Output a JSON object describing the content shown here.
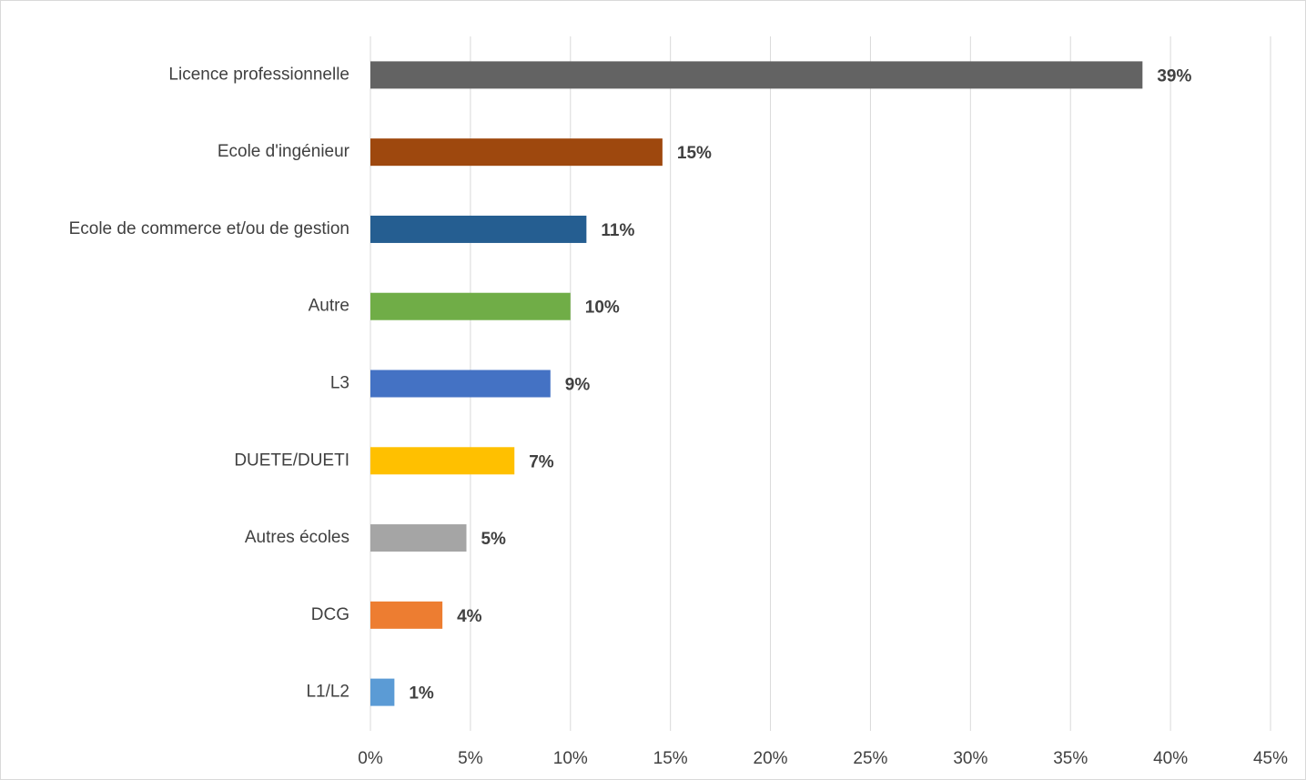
{
  "chart_data": {
    "type": "bar",
    "orientation": "horizontal",
    "categories": [
      "Licence professionnelle",
      "Ecole d'ingénieur",
      "Ecole de commerce et/ou de gestion",
      "Autre",
      "L3",
      "DUETE/DUETI",
      "Autres écoles",
      "DCG",
      "L1/L2"
    ],
    "values": [
      38.6,
      14.6,
      10.8,
      10.0,
      9.0,
      7.2,
      4.8,
      3.6,
      1.2
    ],
    "value_labels": [
      "39%",
      "15%",
      "11%",
      "10%",
      "9%",
      "7%",
      "5%",
      "4%",
      "1%"
    ],
    "colors": [
      "#636363",
      "#9e480e",
      "#255e91",
      "#70ad47",
      "#4472c4",
      "#ffc000",
      "#a5a5a5",
      "#ed7d31",
      "#5b9bd5"
    ],
    "xlim": [
      0,
      45
    ],
    "xticks": [
      {
        "value": 0,
        "label": "0%"
      },
      {
        "value": 5,
        "label": "5%"
      },
      {
        "value": 10,
        "label": "10%"
      },
      {
        "value": 15,
        "label": "15%"
      },
      {
        "value": 20,
        "label": "20%"
      },
      {
        "value": 25,
        "label": "25%"
      },
      {
        "value": 30,
        "label": "30%"
      },
      {
        "value": 35,
        "label": "35%"
      },
      {
        "value": 40,
        "label": "40%"
      },
      {
        "value": 45,
        "label": "45%"
      }
    ],
    "grid": true
  }
}
